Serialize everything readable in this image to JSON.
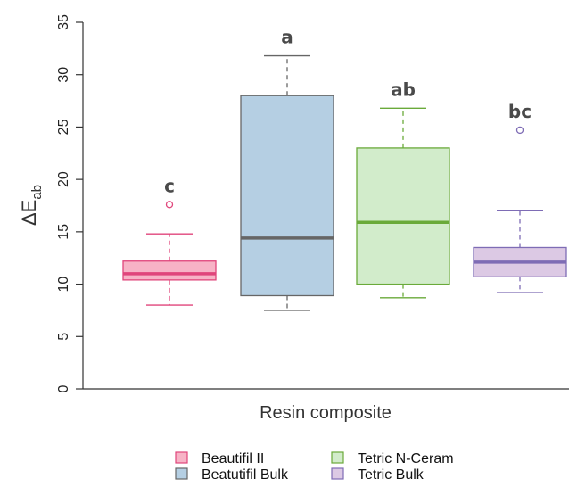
{
  "chart_data": {
    "type": "boxplot",
    "xlabel": "Resin composite",
    "ylabel": {
      "main": "ΔE",
      "sub": "ab"
    },
    "ylim": [
      0,
      35
    ],
    "yticks": [
      0,
      5,
      10,
      15,
      20,
      25,
      30,
      35
    ],
    "grid": false,
    "legend_position": "bottom",
    "series": [
      {
        "name": "Beautifil II",
        "min": 8.0,
        "q1": 10.4,
        "median": 11.0,
        "q3": 12.2,
        "max": 14.8,
        "outliers": [
          17.6
        ],
        "group_label": "c",
        "fill": "#f7b3c6",
        "stroke": "#e0457b"
      },
      {
        "name": "Beatutifil Bulk",
        "min": 7.5,
        "q1": 8.9,
        "median": 14.4,
        "q3": 28.0,
        "max": 31.8,
        "outliers": [],
        "group_label": "a",
        "fill": "#b5cfe3",
        "stroke": "#666666"
      },
      {
        "name": "Tetric N-Ceram",
        "min": 8.7,
        "q1": 10.0,
        "median": 15.9,
        "q3": 23.0,
        "max": 26.8,
        "outliers": [],
        "group_label": "ab",
        "fill": "#d2eccb",
        "stroke": "#6aaa3a"
      },
      {
        "name": "Tetric Bulk",
        "min": 9.2,
        "q1": 10.7,
        "median": 12.1,
        "q3": 13.5,
        "max": 17.0,
        "outliers": [
          24.7
        ],
        "group_label": "bc",
        "fill": "#dcc9e4",
        "stroke": "#7e6cb5"
      }
    ]
  }
}
